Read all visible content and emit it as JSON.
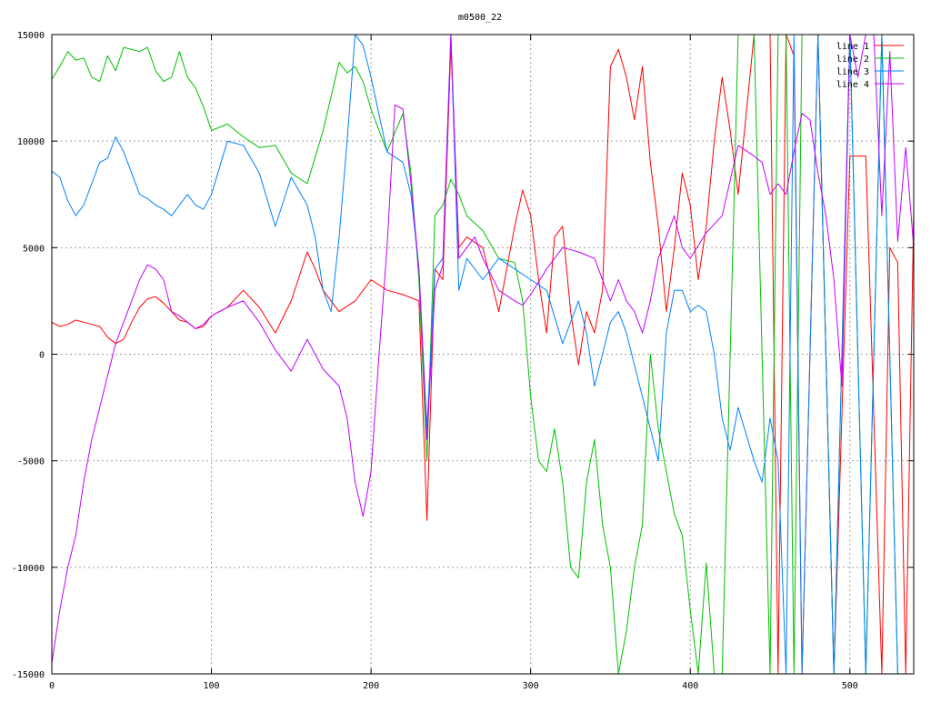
{
  "colors": {
    "background": "#ffffff",
    "axis": "#000000",
    "grid": "#a0a0a0"
  },
  "chart_data": {
    "type": "line",
    "title": "m0500_22",
    "xlabel": "",
    "ylabel": "",
    "xlim": [
      0,
      540
    ],
    "ylim": [
      -15000,
      15000
    ],
    "x_ticks": [
      0,
      100,
      200,
      300,
      400,
      500
    ],
    "y_ticks": [
      -15000,
      -10000,
      -5000,
      0,
      5000,
      10000,
      15000
    ],
    "grid": true,
    "legend_position": "top-right",
    "series": [
      {
        "name": "line 1",
        "color": "#ff0000",
        "x": [
          0,
          5,
          10,
          15,
          20,
          25,
          30,
          35,
          40,
          45,
          50,
          55,
          60,
          65,
          70,
          75,
          80,
          85,
          90,
          95,
          100,
          110,
          120,
          130,
          140,
          150,
          160,
          165,
          170,
          180,
          190,
          200,
          210,
          220,
          230,
          235,
          240,
          245,
          250,
          255,
          260,
          270,
          280,
          290,
          295,
          300,
          305,
          310,
          315,
          320,
          325,
          330,
          335,
          340,
          345,
          350,
          355,
          360,
          365,
          370,
          375,
          380,
          385,
          390,
          395,
          400,
          405,
          410,
          415,
          420,
          425,
          430,
          440,
          445,
          450,
          455,
          460,
          465,
          470,
          480,
          490,
          500,
          510,
          520,
          525,
          530,
          535,
          540
        ],
        "values": [
          1500,
          1300,
          1400,
          1600,
          1500,
          1400,
          1300,
          800,
          500,
          700,
          1500,
          2200,
          2600,
          2700,
          2400,
          2000,
          1600,
          1500,
          1200,
          1300,
          1800,
          2200,
          3000,
          2200,
          1000,
          2500,
          4800,
          4000,
          3000,
          2000,
          2500,
          3500,
          3000,
          2800,
          2500,
          -7800,
          4000,
          3500,
          14500,
          5000,
          5500,
          5000,
          2000,
          6000,
          7700,
          6500,
          3500,
          1000,
          5500,
          6000,
          2000,
          -500,
          2000,
          1000,
          3000,
          13500,
          14300,
          13000,
          11000,
          13500,
          9000,
          6000,
          2000,
          5000,
          8500,
          7000,
          3500,
          6000,
          10000,
          13000,
          10500,
          7500,
          15000,
          15000,
          15000,
          -15000,
          15000,
          14000,
          -15000,
          15000,
          -15000,
          9300,
          9300,
          -15000,
          5000,
          4300,
          -15000,
          6800
        ]
      },
      {
        "name": "line 2",
        "color": "#00c000",
        "x": [
          0,
          5,
          10,
          15,
          20,
          25,
          30,
          35,
          40,
          45,
          50,
          55,
          60,
          65,
          70,
          75,
          80,
          85,
          90,
          95,
          100,
          110,
          120,
          130,
          140,
          150,
          160,
          170,
          180,
          185,
          190,
          195,
          200,
          210,
          220,
          225,
          230,
          235,
          240,
          245,
          250,
          255,
          260,
          270,
          280,
          290,
          295,
          300,
          305,
          310,
          315,
          320,
          325,
          330,
          335,
          340,
          345,
          350,
          355,
          360,
          365,
          370,
          375,
          380,
          385,
          390,
          395,
          400,
          405,
          410,
          415,
          420,
          430,
          440,
          450,
          455,
          460,
          465,
          470,
          480,
          490,
          500,
          510,
          520,
          530,
          540
        ],
        "values": [
          12900,
          13500,
          14200,
          13800,
          13900,
          13000,
          12800,
          14000,
          13300,
          14400,
          14300,
          14200,
          14400,
          13300,
          12800,
          13000,
          14200,
          13000,
          12500,
          11600,
          10500,
          10800,
          10200,
          9700,
          9800,
          8500,
          8000,
          10500,
          13700,
          13200,
          13500,
          12800,
          11500,
          9500,
          11300,
          8500,
          3500,
          -5000,
          6500,
          7000,
          8200,
          7500,
          6500,
          5800,
          4500,
          4300,
          2500,
          -2000,
          -5000,
          -5500,
          -3500,
          -6000,
          -10000,
          -10500,
          -6000,
          -4000,
          -8000,
          -10000,
          -15000,
          -13000,
          -10000,
          -8000,
          0,
          -3500,
          -5500,
          -7500,
          -8500,
          -12000,
          -15000,
          -9800,
          -15000,
          -15000,
          15000,
          15000,
          -15000,
          15000,
          15000,
          -15000,
          15000,
          15000,
          -15000,
          15000,
          -15000,
          15000,
          -15000,
          -15000
        ]
      },
      {
        "name": "line 3",
        "color": "#0080ff",
        "x": [
          0,
          5,
          10,
          15,
          20,
          25,
          30,
          35,
          40,
          45,
          50,
          55,
          60,
          65,
          70,
          75,
          80,
          85,
          90,
          95,
          100,
          110,
          120,
          130,
          140,
          150,
          160,
          165,
          170,
          175,
          180,
          185,
          190,
          195,
          200,
          210,
          220,
          225,
          230,
          235,
          240,
          245,
          250,
          255,
          260,
          270,
          280,
          290,
          300,
          310,
          320,
          325,
          330,
          335,
          340,
          345,
          350,
          355,
          360,
          365,
          370,
          375,
          380,
          385,
          390,
          395,
          400,
          405,
          410,
          415,
          420,
          425,
          430,
          440,
          445,
          450,
          455,
          460,
          465,
          470,
          480,
          490,
          500,
          510,
          520,
          530,
          540
        ],
        "values": [
          8600,
          8300,
          7200,
          6500,
          7000,
          8000,
          9000,
          9200,
          10200,
          9500,
          8500,
          7500,
          7300,
          7000,
          6800,
          6500,
          7000,
          7500,
          7000,
          6800,
          7500,
          10000,
          9800,
          8500,
          6000,
          8300,
          7000,
          5500,
          3000,
          2000,
          5500,
          10000,
          15000,
          14500,
          13000,
          9500,
          9000,
          7500,
          4000,
          -3500,
          4000,
          4500,
          15000,
          3000,
          4500,
          3500,
          4500,
          4000,
          3500,
          3000,
          500,
          1500,
          2500,
          1000,
          -1500,
          0,
          1500,
          2000,
          1000,
          -500,
          -2000,
          -3500,
          -5000,
          1000,
          3000,
          3000,
          2000,
          2300,
          2000,
          0,
          -3000,
          -4500,
          -2500,
          -5000,
          -6000,
          -3000,
          -5000,
          -15000,
          15000,
          -15000,
          15000,
          -15000,
          15000,
          -15000,
          15000,
          -15000,
          -15000
        ]
      },
      {
        "name": "line 4",
        "color": "#c000ff",
        "x": [
          0,
          5,
          10,
          15,
          20,
          25,
          30,
          35,
          40,
          45,
          50,
          55,
          60,
          65,
          70,
          75,
          80,
          85,
          90,
          95,
          100,
          110,
          120,
          130,
          140,
          150,
          160,
          170,
          180,
          185,
          190,
          195,
          200,
          205,
          210,
          215,
          220,
          225,
          230,
          235,
          240,
          245,
          250,
          255,
          260,
          265,
          270,
          280,
          290,
          295,
          300,
          310,
          320,
          330,
          340,
          350,
          355,
          360,
          365,
          370,
          375,
          380,
          385,
          390,
          395,
          400,
          410,
          420,
          430,
          440,
          445,
          450,
          455,
          460,
          465,
          470,
          475,
          480,
          485,
          490,
          495,
          500,
          505,
          510,
          515,
          520,
          525,
          530,
          535,
          540
        ],
        "values": [
          -14500,
          -12000,
          -10000,
          -8500,
          -6000,
          -4000,
          -2500,
          -1000,
          500,
          1500,
          2500,
          3500,
          4200,
          4000,
          3500,
          2000,
          1800,
          1500,
          1200,
          1400,
          1800,
          2200,
          2500,
          1500,
          200,
          -800,
          700,
          -700,
          -1500,
          -3000,
          -6000,
          -7600,
          -5500,
          0,
          5000,
          11700,
          11500,
          8000,
          4000,
          -4000,
          3000,
          4200,
          15000,
          4500,
          5000,
          5500,
          4500,
          3000,
          2500,
          2300,
          2800,
          4000,
          5000,
          4800,
          4500,
          2500,
          3500,
          2500,
          2000,
          1000,
          2500,
          4500,
          5500,
          6500,
          5000,
          4500,
          5700,
          6500,
          9800,
          9300,
          9000,
          7500,
          8000,
          7500,
          9500,
          11300,
          11000,
          8500,
          6500,
          3500,
          -1500,
          15000,
          13000,
          15000,
          15000,
          6500,
          14200,
          5300,
          9700,
          5000
        ]
      }
    ]
  }
}
